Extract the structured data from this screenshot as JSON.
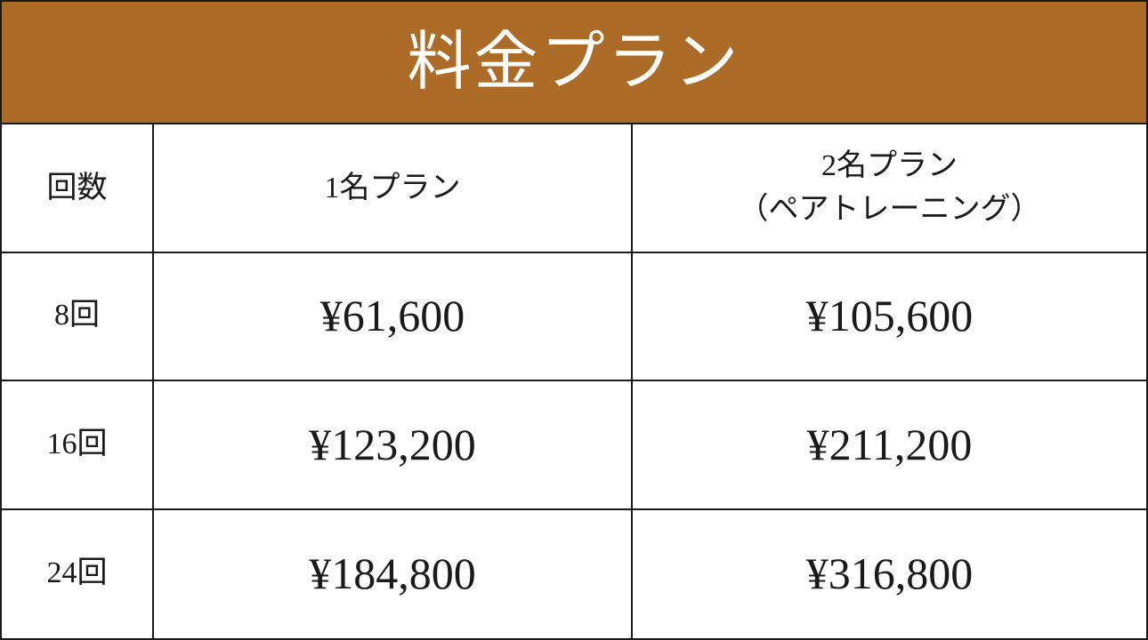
{
  "banner": {
    "title": "料金プラン"
  },
  "table": {
    "columns": [
      {
        "label": "回数"
      },
      {
        "label": "1名プラン"
      },
      {
        "label": "2名プラン",
        "sublabel": "（ペアトレーニング）"
      }
    ],
    "rows": [
      {
        "sessions": "8回",
        "plan1": "¥61,600",
        "plan2": "¥105,600"
      },
      {
        "sessions": "16回",
        "plan1": "¥123,200",
        "plan2": "¥211,200"
      },
      {
        "sessions": "24回",
        "plan1": "¥184,800",
        "plan2": "¥316,800"
      }
    ]
  },
  "colors": {
    "banner_background": "#AC6B27",
    "banner_text": "#FFFFFF",
    "border": "#1A1A1A",
    "cell_text": "#1A1A1A",
    "page_background": "#FFFFFF"
  }
}
